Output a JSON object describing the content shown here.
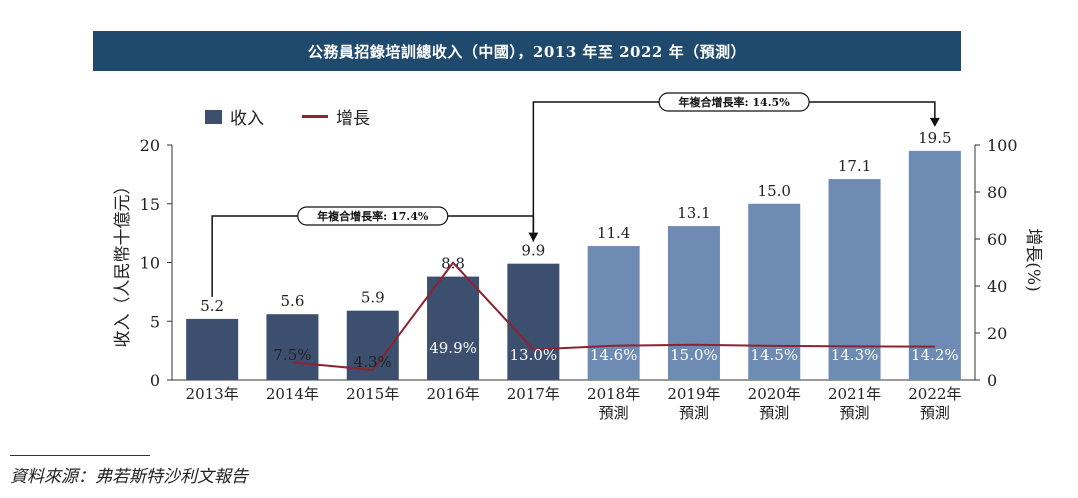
{
  "title": "公務員招錄培訓總收入（中國），2013 年至 2022 年（預測）",
  "source": "資料來源：弗若斯特沙利文報告",
  "colors": {
    "title_bg": "#1f4a6e",
    "bar_actual": "#3d4f6f",
    "bar_forecast": "#6e8bb3",
    "growth_line": "#8b2330"
  },
  "chart_data": {
    "type": "bar",
    "categories": [
      [
        "2013年"
      ],
      [
        "2014年"
      ],
      [
        "2015年"
      ],
      [
        "2016年"
      ],
      [
        "2017年"
      ],
      [
        "2018年",
        "預測"
      ],
      [
        "2019年",
        "預測"
      ],
      [
        "2020年",
        "預測"
      ],
      [
        "2021年",
        "預測"
      ],
      [
        "2022年",
        "預測"
      ]
    ],
    "series": [
      {
        "name": "收入",
        "values": [
          5.2,
          5.6,
          5.9,
          8.8,
          9.9,
          11.4,
          13.1,
          15.0,
          17.1,
          19.5
        ],
        "labels": [
          "5.2",
          "5.6",
          "5.9",
          "8.8",
          "9.9",
          "11.4",
          "13.1",
          "15.0",
          "17.1",
          "19.5"
        ],
        "forecast_from_index": 5
      },
      {
        "name": "增長",
        "values": [
          null,
          7.5,
          4.3,
          49.9,
          13.0,
          14.6,
          15.0,
          14.5,
          14.3,
          14.2
        ],
        "labels": [
          "",
          "7.5%",
          "4.3%",
          "49.9%",
          "13.0%",
          "14.6%",
          "15.0%",
          "14.5%",
          "14.3%",
          "14.2%"
        ],
        "axis": "right"
      }
    ],
    "ylabel": "收入（人民幣十億元）",
    "y2label": "增長(%)",
    "ylim": [
      0,
      20
    ],
    "yticks": [
      0,
      5,
      10,
      15,
      20
    ],
    "y2lim": [
      0,
      100
    ],
    "y2ticks": [
      0,
      20,
      40,
      60,
      80,
      100
    ],
    "legend_position": "top-left",
    "annotations": [
      {
        "text": "年複合增長率: 17.4%",
        "from_index": 0,
        "to_index": 4
      },
      {
        "text": "年複合增長率: 14.5%",
        "from_index": 4,
        "to_index": 9
      }
    ]
  }
}
